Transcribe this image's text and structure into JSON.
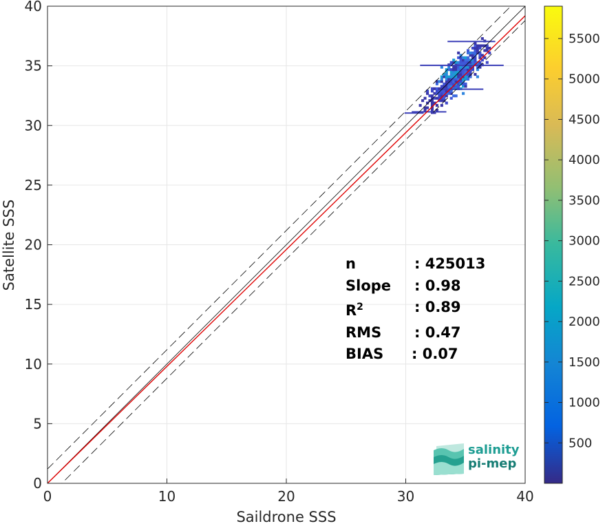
{
  "chart_data": {
    "type": "heatmap",
    "title": "",
    "xlabel": "Saildrone SSS",
    "ylabel": "Satellite SSS",
    "xlim": [
      0,
      40
    ],
    "ylim": [
      0,
      40
    ],
    "xticks": [
      "0",
      "10",
      "20",
      "30",
      "40"
    ],
    "yticks": [
      "0",
      "5",
      "10",
      "15",
      "20",
      "25",
      "30",
      "35",
      "40"
    ],
    "grid": true,
    "colorbar": {
      "range": [
        0,
        5900
      ],
      "ticks": [
        "500",
        "1000",
        "1500",
        "2000",
        "2500",
        "3000",
        "3500",
        "4000",
        "4500",
        "5000",
        "5500"
      ],
      "colormap": "parula"
    },
    "reference_lines": [
      {
        "name": "1:1 line",
        "slope": 1,
        "intercept": 0,
        "color": "#000000",
        "style": "solid"
      },
      {
        "name": "+/- bounds",
        "offset": 1.2,
        "color": "#000000",
        "style": "dashed"
      },
      {
        "name": "regression fit",
        "slope": 0.98,
        "intercept": 0.0,
        "color": "#e00000",
        "style": "solid"
      }
    ],
    "density_region": {
      "x_range": [
        29.5,
        39.0
      ],
      "y_range": [
        31.0,
        39.0
      ],
      "peak": [
        34.2,
        34.5
      ],
      "peak_count": 2500
    }
  },
  "stats": [
    {
      "key": "n",
      "value": ": 425013"
    },
    {
      "key": "Slope",
      "value": ": 0.98"
    },
    {
      "key": "R",
      "sup": "2",
      "value": ": 0.89"
    },
    {
      "key": "RMS",
      "value": ": 0.47"
    },
    {
      "key": "BIAS",
      "value": ": 0.07"
    }
  ],
  "logo": {
    "line1": "salinity",
    "line2": "pi-mep"
  },
  "colors": {
    "fit": "#e00000",
    "grid": "#e6e6e6",
    "axis": "#262626"
  }
}
